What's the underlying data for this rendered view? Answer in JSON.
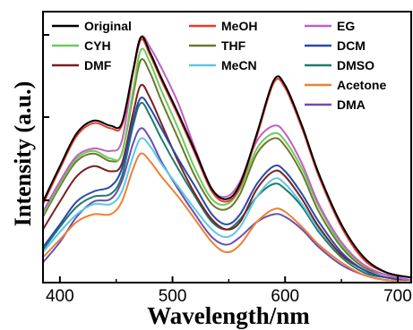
{
  "chart_data": {
    "type": "line",
    "title": "",
    "xlabel": "Wavelength/nm",
    "ylabel": "Intensity (a.u.)",
    "xlim": [
      385,
      712
    ],
    "ylim": [
      0,
      1
    ],
    "xticks": [
      400,
      500,
      600,
      700
    ],
    "ytick_labels": false,
    "grid": false,
    "legend_position": "top",
    "legend_columns": 3,
    "series": [
      {
        "name": "Original",
        "color": "#000000",
        "x": [
          385,
          400,
          415,
          430,
          445,
          455,
          465,
          472,
          480,
          490,
          505,
          520,
          535,
          548,
          560,
          575,
          590,
          600,
          615,
          630,
          650,
          670,
          690,
          712
        ],
        "y": [
          0.32,
          0.46,
          0.59,
          0.64,
          0.62,
          0.63,
          0.84,
          0.97,
          0.91,
          0.81,
          0.67,
          0.52,
          0.37,
          0.33,
          0.39,
          0.59,
          0.8,
          0.78,
          0.62,
          0.43,
          0.23,
          0.1,
          0.04,
          0.02
        ]
      },
      {
        "name": "MeOH",
        "color": "#e8392c",
        "x": [
          385,
          400,
          415,
          430,
          445,
          455,
          465,
          472,
          480,
          490,
          505,
          520,
          535,
          548,
          560,
          575,
          590,
          600,
          615,
          630,
          650,
          670,
          690,
          712
        ],
        "y": [
          0.31,
          0.45,
          0.58,
          0.63,
          0.61,
          0.62,
          0.83,
          0.96,
          0.9,
          0.8,
          0.66,
          0.51,
          0.36,
          0.32,
          0.38,
          0.58,
          0.79,
          0.77,
          0.61,
          0.42,
          0.22,
          0.09,
          0.04,
          0.02
        ]
      },
      {
        "name": "EG",
        "color": "#c25fc3",
        "x": [
          385,
          400,
          415,
          430,
          445,
          455,
          465,
          472,
          480,
          490,
          505,
          520,
          535,
          548,
          560,
          575,
          590,
          600,
          615,
          630,
          650,
          670,
          690,
          712
        ],
        "y": [
          0.28,
          0.4,
          0.5,
          0.53,
          0.52,
          0.56,
          0.83,
          0.97,
          0.93,
          0.85,
          0.71,
          0.53,
          0.37,
          0.34,
          0.4,
          0.56,
          0.62,
          0.59,
          0.47,
          0.31,
          0.16,
          0.07,
          0.03,
          0.01
        ]
      },
      {
        "name": "CYH",
        "color": "#6dca5c",
        "x": [
          385,
          400,
          415,
          430,
          445,
          455,
          465,
          472,
          480,
          490,
          505,
          520,
          535,
          548,
          560,
          575,
          590,
          600,
          615,
          630,
          650,
          670,
          690,
          712
        ],
        "y": [
          0.27,
          0.39,
          0.49,
          0.52,
          0.49,
          0.51,
          0.76,
          0.92,
          0.87,
          0.76,
          0.61,
          0.45,
          0.33,
          0.31,
          0.37,
          0.53,
          0.59,
          0.56,
          0.45,
          0.3,
          0.15,
          0.07,
          0.03,
          0.01
        ]
      },
      {
        "name": "THF",
        "color": "#6b7a2a",
        "x": [
          385,
          400,
          415,
          430,
          445,
          455,
          465,
          472,
          480,
          490,
          505,
          520,
          535,
          548,
          560,
          575,
          590,
          600,
          615,
          630,
          650,
          670,
          690,
          712
        ],
        "y": [
          0.26,
          0.38,
          0.48,
          0.51,
          0.48,
          0.51,
          0.74,
          0.88,
          0.83,
          0.72,
          0.57,
          0.42,
          0.31,
          0.29,
          0.35,
          0.51,
          0.57,
          0.54,
          0.43,
          0.28,
          0.14,
          0.06,
          0.03,
          0.01
        ]
      },
      {
        "name": "DCM",
        "color": "#2b4aa8",
        "x": [
          385,
          400,
          415,
          430,
          445,
          455,
          465,
          472,
          480,
          490,
          505,
          520,
          535,
          548,
          560,
          575,
          590,
          600,
          615,
          630,
          650,
          670,
          690,
          712
        ],
        "y": [
          0.14,
          0.23,
          0.32,
          0.36,
          0.38,
          0.45,
          0.64,
          0.73,
          0.69,
          0.61,
          0.49,
          0.38,
          0.27,
          0.23,
          0.27,
          0.39,
          0.46,
          0.44,
          0.35,
          0.24,
          0.12,
          0.05,
          0.02,
          0.01
        ]
      },
      {
        "name": "DMF",
        "color": "#7a1f1f",
        "x": [
          385,
          400,
          415,
          430,
          445,
          455,
          465,
          472,
          480,
          490,
          505,
          520,
          535,
          548,
          560,
          575,
          590,
          600,
          615,
          630,
          650,
          670,
          690,
          712
        ],
        "y": [
          0.21,
          0.32,
          0.42,
          0.46,
          0.44,
          0.47,
          0.67,
          0.78,
          0.73,
          0.63,
          0.48,
          0.35,
          0.25,
          0.21,
          0.24,
          0.37,
          0.44,
          0.42,
          0.33,
          0.22,
          0.11,
          0.05,
          0.02,
          0.01
        ]
      },
      {
        "name": "MeCN",
        "color": "#5cc8e8",
        "x": [
          385,
          400,
          415,
          430,
          445,
          455,
          465,
          472,
          480,
          490,
          505,
          520,
          535,
          548,
          560,
          575,
          590,
          600,
          615,
          630,
          650,
          670,
          690,
          712
        ],
        "y": [
          0.12,
          0.2,
          0.27,
          0.31,
          0.31,
          0.36,
          0.5,
          0.57,
          0.54,
          0.47,
          0.38,
          0.29,
          0.21,
          0.18,
          0.22,
          0.34,
          0.41,
          0.39,
          0.31,
          0.21,
          0.11,
          0.05,
          0.02,
          0.01
        ]
      },
      {
        "name": "DMSO",
        "color": "#1f7a6e",
        "x": [
          385,
          400,
          415,
          430,
          445,
          455,
          465,
          472,
          480,
          490,
          505,
          520,
          535,
          548,
          560,
          575,
          590,
          600,
          615,
          630,
          650,
          670,
          690,
          712
        ],
        "y": [
          0.13,
          0.22,
          0.3,
          0.34,
          0.35,
          0.42,
          0.62,
          0.71,
          0.66,
          0.57,
          0.45,
          0.34,
          0.24,
          0.21,
          0.25,
          0.34,
          0.39,
          0.37,
          0.3,
          0.2,
          0.1,
          0.04,
          0.02,
          0.01
        ]
      },
      {
        "name": "Acetone",
        "color": "#f07f33",
        "x": [
          385,
          400,
          415,
          430,
          445,
          455,
          465,
          472,
          480,
          490,
          505,
          520,
          535,
          548,
          560,
          575,
          590,
          600,
          615,
          630,
          650,
          670,
          690,
          712
        ],
        "y": [
          0.1,
          0.17,
          0.24,
          0.27,
          0.27,
          0.32,
          0.45,
          0.51,
          0.48,
          0.42,
          0.34,
          0.25,
          0.16,
          0.12,
          0.15,
          0.24,
          0.29,
          0.28,
          0.22,
          0.15,
          0.08,
          0.03,
          0.01,
          0.01
        ]
      },
      {
        "name": "DMA",
        "color": "#6a4fb0",
        "x": [
          385,
          400,
          415,
          430,
          445,
          455,
          465,
          472,
          480,
          490,
          505,
          520,
          535,
          548,
          560,
          575,
          590,
          600,
          615,
          630,
          650,
          670,
          690,
          712
        ],
        "y": [
          0.08,
          0.16,
          0.26,
          0.32,
          0.33,
          0.4,
          0.55,
          0.61,
          0.57,
          0.48,
          0.37,
          0.27,
          0.18,
          0.15,
          0.18,
          0.24,
          0.27,
          0.26,
          0.21,
          0.14,
          0.07,
          0.03,
          0.01,
          0.01
        ]
      }
    ]
  }
}
